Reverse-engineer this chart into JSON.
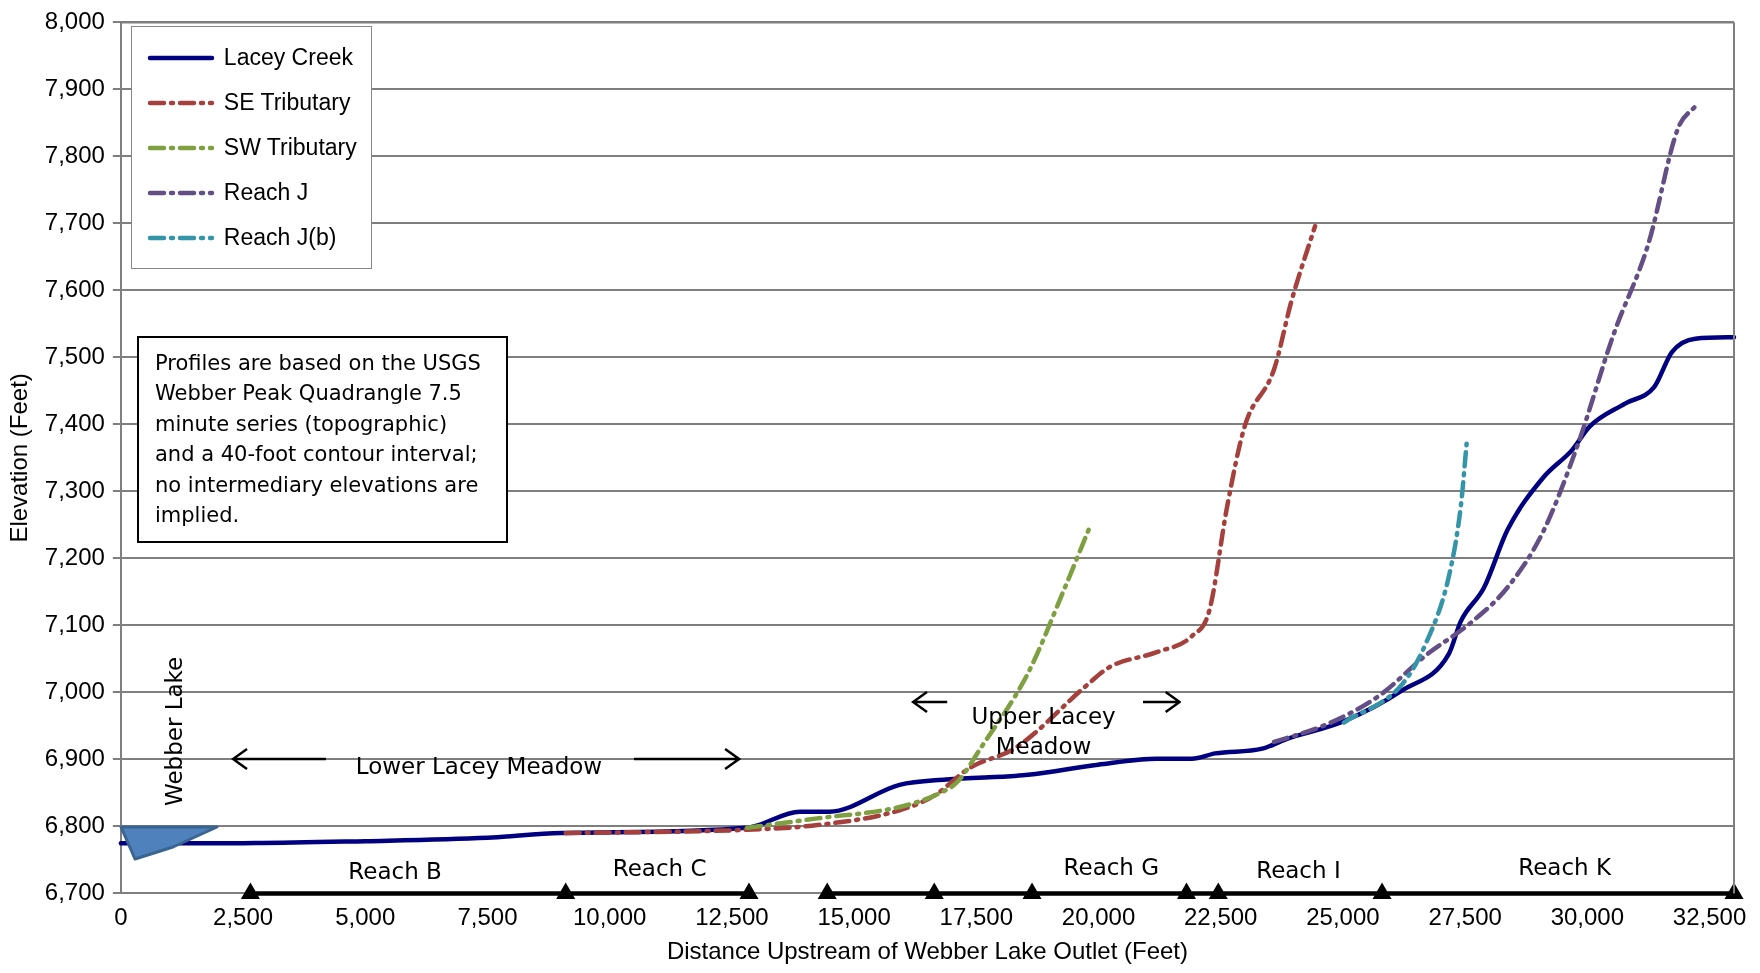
{
  "chart_data": {
    "type": "line",
    "xlabel": "Distance Upstream of Webber Lake Outlet (Feet)",
    "ylabel": "Elevation (Feet)",
    "xlim": [
      0,
      33000
    ],
    "xticks": [
      0,
      {
        "value": 2500,
        "label": "2,500"
      },
      {
        "value": 5000,
        "label": "5,000"
      },
      {
        "value": 7500,
        "label": "7,500"
      },
      {
        "value": 10000,
        "label": "10,000"
      },
      {
        "value": 12500,
        "label": "12,500"
      },
      {
        "value": 15000,
        "label": "15,000"
      },
      {
        "value": 17500,
        "label": "17,500"
      },
      {
        "value": 20000,
        "label": "20,000"
      },
      {
        "value": 22500,
        "label": "22,500"
      },
      {
        "value": 25000,
        "label": "25,000"
      },
      {
        "value": 27500,
        "label": "27,500"
      },
      {
        "value": 30000,
        "label": "30,000"
      },
      {
        "value": 32500,
        "label": "32,500"
      }
    ],
    "ylim": [
      6700,
      8000
    ],
    "yticks": [
      {
        "value": 6700,
        "label": "6,700"
      },
      {
        "value": 6800,
        "label": "6,800"
      },
      {
        "value": 6900,
        "label": "6,900"
      },
      {
        "value": 7000,
        "label": "7,000"
      },
      {
        "value": 7100,
        "label": "7,100"
      },
      {
        "value": 7200,
        "label": "7,200"
      },
      {
        "value": 7300,
        "label": "7,300"
      },
      {
        "value": 7400,
        "label": "7,400"
      },
      {
        "value": 7500,
        "label": "7,500"
      },
      {
        "value": 7600,
        "label": "7,600"
      },
      {
        "value": 7700,
        "label": "7,700"
      },
      {
        "value": 7800,
        "label": "7,800"
      },
      {
        "value": 7900,
        "label": "7,900"
      },
      {
        "value": 8000,
        "label": "8,000"
      }
    ],
    "grid": "y",
    "legend": "top left",
    "marker": "none",
    "series": [
      {
        "name": "Lacey Creek",
        "color": "#000080",
        "line_style": "solid",
        "x": [
          0,
          2500,
          5000,
          7500,
          9000,
          12810,
          13890,
          14490,
          15930,
          16880,
          18560,
          19990,
          21190,
          21910,
          22390,
          23350,
          23830,
          25020,
          26210,
          27170,
          27410,
          27890,
          28370,
          29090,
          29690,
          30050,
          30770,
          31370,
          31730,
          32210,
          33000
        ],
        "values": [
          6775,
          6775,
          6778,
          6783,
          6790,
          6798,
          6822,
          6822,
          6862,
          6870,
          6877,
          6892,
          6901,
          6901,
          6909,
          6916,
          6930,
          6957,
          7003,
          7058,
          7106,
          7157,
          7243,
          7320,
          7362,
          7397,
          7431,
          7456,
          7508,
          7528,
          7530
        ]
      },
      {
        "name": "SE Tributary",
        "color": "#a5403c",
        "line_style": "dashed",
        "x": [
          9100,
          12810,
          14250,
          15930,
          16640,
          17360,
          18320,
          19750,
          20230,
          21190,
          21910,
          22270,
          22630,
          22990,
          23590,
          23950,
          24430
        ],
        "values": [
          6790,
          6795,
          6802,
          6824,
          6846,
          6887,
          6918,
          7010,
          7038,
          7060,
          7084,
          7123,
          7277,
          7397,
          7482,
          7585,
          7696
        ]
      },
      {
        "name": "SW Tributary",
        "color": "#7fa040",
        "line_style": "dashed",
        "x": [
          12810,
          14250,
          15930,
          16760,
          17120,
          17600,
          18560,
          19270,
          19800
        ],
        "values": [
          6798,
          6812,
          6829,
          6850,
          6867,
          6918,
          7029,
          7149,
          7243
        ]
      },
      {
        "name": "Reach J",
        "color": "#634f86",
        "line_style": "dashed",
        "x": [
          23590,
          24660,
          25740,
          26690,
          27650,
          28370,
          29090,
          29810,
          30530,
          31250,
          31850,
          32210
        ],
        "values": [
          6926,
          6952,
          6995,
          7055,
          7106,
          7157,
          7239,
          7371,
          7533,
          7670,
          7841,
          7875
        ]
      },
      {
        "name": "Reach J(b)",
        "color": "#3595a8",
        "line_style": "dashed",
        "x": [
          25020,
          26210,
          26690,
          27170,
          27410,
          27530
        ],
        "values": [
          6955,
          7012,
          7072,
          7174,
          7277,
          7371
        ]
      },
      {
        "color": "#000000",
        "line_style": "solid",
        "marker": "triangle",
        "x": [
          2650,
          9100,
          12850,
          13650,
          14450,
          16640,
          18640,
          21800,
          22450,
          25800,
          33000
        ],
        "values": [
          6700,
          6700,
          6700,
          null,
          6700,
          6700,
          6700,
          6700,
          6700,
          6700,
          6700
        ]
      }
    ],
    "annotations": [
      "Profiles are based on the USGS Webber Peak Quadrangle 7.5 minute series (topographic) and a 40-foot contour interval; no intermediary elevations are implied.",
      "Webber Lake",
      "Lower Lacey Meadow",
      "Upper Lacey Meadow",
      "Reach B",
      "Reach C",
      "Reach G",
      "Reach I",
      "Reach K"
    ]
  }
}
